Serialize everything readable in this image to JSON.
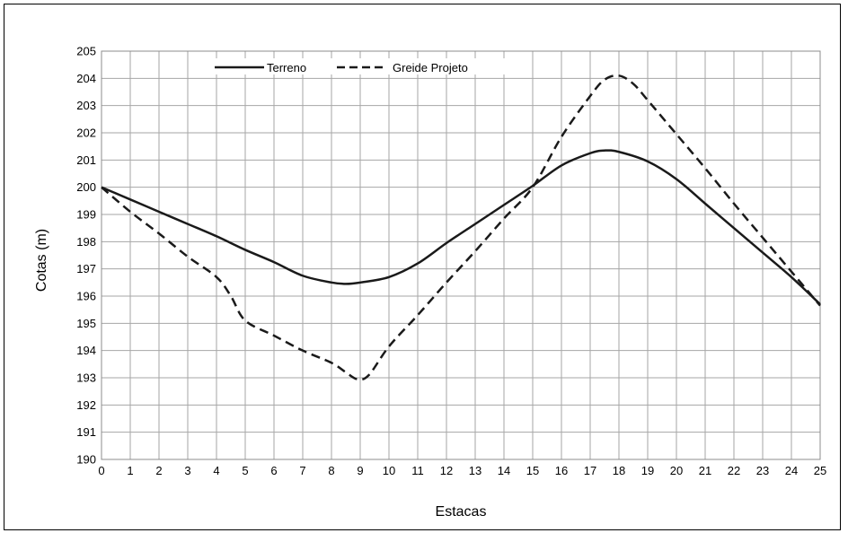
{
  "chart_data": {
    "type": "line",
    "xlabel": "Estacas",
    "ylabel": "Cotas (m)",
    "xlim": [
      0,
      25
    ],
    "ylim": [
      190,
      205
    ],
    "x_ticks": [
      "0",
      "1",
      "2",
      "3",
      "4",
      "5",
      "6",
      "7",
      "8",
      "9",
      "10",
      "11",
      "12",
      "13",
      "14",
      "15",
      "16",
      "17",
      "18",
      "19",
      "20",
      "21",
      "22",
      "23",
      "24",
      "25"
    ],
    "y_ticks": [
      "190",
      "191",
      "192",
      "193",
      "194",
      "195",
      "196",
      "197",
      "198",
      "199",
      "200",
      "201",
      "202",
      "203",
      "204",
      "205"
    ],
    "grid": true,
    "legend_position": "top-left",
    "series": [
      {
        "name": "Terreno",
        "style": "solid",
        "color": "#1a1a1a",
        "points": [
          [
            0,
            200
          ],
          [
            1,
            199.55
          ],
          [
            2,
            199.1
          ],
          [
            3,
            198.65
          ],
          [
            4,
            198.2
          ],
          [
            5,
            197.7
          ],
          [
            6,
            197.25
          ],
          [
            7,
            196.75
          ],
          [
            8,
            196.5
          ],
          [
            8.5,
            196.45
          ],
          [
            9,
            196.5
          ],
          [
            10,
            196.7
          ],
          [
            11,
            197.2
          ],
          [
            12,
            197.95
          ],
          [
            13,
            198.65
          ],
          [
            14,
            199.35
          ],
          [
            15,
            200.05
          ],
          [
            16,
            200.8
          ],
          [
            17,
            201.25
          ],
          [
            17.5,
            201.35
          ],
          [
            18,
            201.3
          ],
          [
            19,
            200.95
          ],
          [
            20,
            200.3
          ],
          [
            21,
            199.4
          ],
          [
            22,
            198.5
          ],
          [
            23,
            197.6
          ],
          [
            24,
            196.7
          ],
          [
            25,
            195.7
          ]
        ]
      },
      {
        "name": "Greide Projeto",
        "style": "dashed",
        "color": "#1a1a1a",
        "points": [
          [
            0,
            200
          ],
          [
            1,
            199.1
          ],
          [
            2,
            198.3
          ],
          [
            3,
            197.45
          ],
          [
            4,
            196.7
          ],
          [
            4.5,
            196
          ],
          [
            5,
            195.1
          ],
          [
            6,
            194.55
          ],
          [
            7,
            194
          ],
          [
            8,
            193.55
          ],
          [
            8.5,
            193.2
          ],
          [
            8.9,
            192.95
          ],
          [
            9.3,
            193.1
          ],
          [
            10,
            194.15
          ],
          [
            11,
            195.3
          ],
          [
            12,
            196.5
          ],
          [
            13,
            197.65
          ],
          [
            14,
            198.85
          ],
          [
            15,
            200
          ],
          [
            16,
            201.85
          ],
          [
            17,
            203.35
          ],
          [
            17.5,
            203.95
          ],
          [
            18,
            204.1
          ],
          [
            18.5,
            203.8
          ],
          [
            19,
            203.2
          ],
          [
            20,
            201.95
          ],
          [
            21,
            200.7
          ],
          [
            22,
            199.4
          ],
          [
            23,
            198.15
          ],
          [
            24,
            196.9
          ],
          [
            25,
            195.65
          ]
        ]
      }
    ]
  }
}
